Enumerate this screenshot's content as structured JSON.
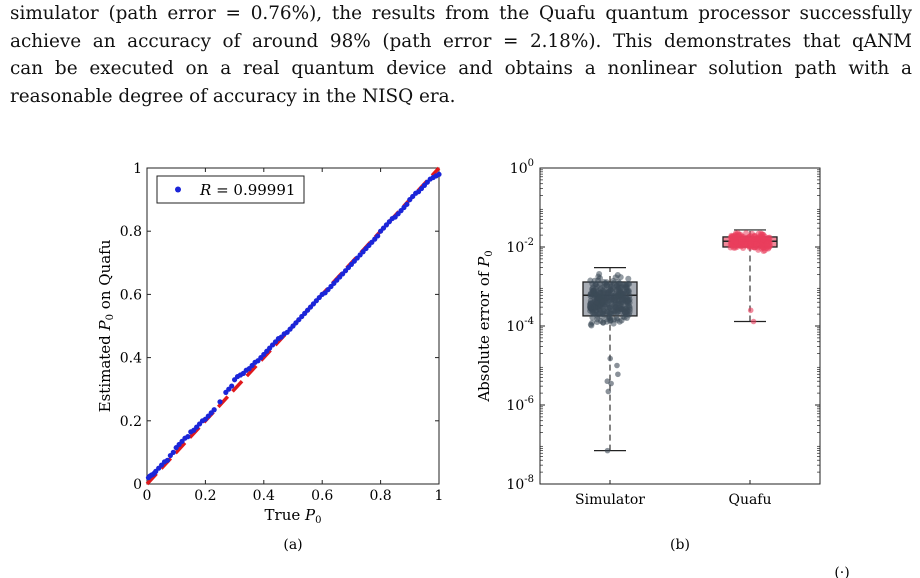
{
  "paragraph": {
    "lines": [
      "simulator (path error = 0.76%), the results from the Quafu quantum processor successfully",
      "achieve an accuracy of around 98% (path error = 2.18%). This demonstrates that qANM",
      "can be executed on a real quantum device and obtains a nonlinear solution path with a",
      "reasonable degree of accuracy in the NISQ era."
    ]
  },
  "figure": {
    "caption_fragment": "(·)"
  },
  "chart_data": [
    {
      "type": "scatter",
      "panel_label": "(a)",
      "xlabel_text": "True ",
      "xlabel_sym": "P",
      "xlabel_sub": "0",
      "ylabel_text": "Estimated ",
      "ylabel_sym": "P",
      "ylabel_sub": "0",
      "ylabel_tail": " on Quafu",
      "xlim": [
        0,
        1
      ],
      "ylim": [
        0,
        1
      ],
      "xticks": [
        "0",
        "0.2",
        "0.4",
        "0.6",
        "0.8",
        "1"
      ],
      "yticks": [
        "0",
        "0.2",
        "0.4",
        "0.6",
        "0.8",
        "1"
      ],
      "legend": {
        "sym": "R",
        "value": " = 0.99991",
        "placement": "top-left"
      },
      "series": [
        {
          "role": "points",
          "color": "#1b25d8",
          "x": [
            0.005,
            0.01,
            0.015,
            0.02,
            0.025,
            0.03,
            0.04,
            0.05,
            0.06,
            0.07,
            0.08,
            0.09,
            0.1,
            0.11,
            0.12,
            0.13,
            0.14,
            0.15,
            0.16,
            0.17,
            0.18,
            0.19,
            0.2,
            0.21,
            0.22,
            0.23,
            0.25,
            0.27,
            0.28,
            0.29,
            0.3,
            0.31,
            0.32,
            0.33,
            0.34,
            0.35,
            0.36,
            0.37,
            0.38,
            0.39,
            0.4,
            0.41,
            0.42,
            0.43,
            0.44,
            0.45,
            0.46,
            0.47,
            0.48,
            0.49,
            0.5,
            0.51,
            0.52,
            0.53,
            0.54,
            0.55,
            0.56,
            0.57,
            0.58,
            0.59,
            0.6,
            0.61,
            0.62,
            0.63,
            0.64,
            0.65,
            0.66,
            0.67,
            0.68,
            0.69,
            0.7,
            0.71,
            0.72,
            0.73,
            0.74,
            0.75,
            0.76,
            0.77,
            0.78,
            0.79,
            0.8,
            0.81,
            0.82,
            0.83,
            0.84,
            0.85,
            0.86,
            0.87,
            0.88,
            0.89,
            0.9,
            0.91,
            0.92,
            0.93,
            0.94,
            0.95,
            0.96,
            0.97,
            0.98,
            0.99,
            1.0
          ],
          "y": [
            0.02,
            0.025,
            0.028,
            0.03,
            0.034,
            0.04,
            0.05,
            0.06,
            0.07,
            0.075,
            0.09,
            0.1,
            0.115,
            0.125,
            0.135,
            0.145,
            0.15,
            0.165,
            0.17,
            0.18,
            0.19,
            0.2,
            0.205,
            0.215,
            0.225,
            0.235,
            0.26,
            0.29,
            0.3,
            0.31,
            0.33,
            0.34,
            0.345,
            0.35,
            0.36,
            0.365,
            0.375,
            0.385,
            0.39,
            0.4,
            0.41,
            0.42,
            0.43,
            0.44,
            0.45,
            0.46,
            0.465,
            0.475,
            0.48,
            0.49,
            0.5,
            0.51,
            0.52,
            0.53,
            0.54,
            0.55,
            0.56,
            0.57,
            0.58,
            0.59,
            0.6,
            0.605,
            0.615,
            0.625,
            0.635,
            0.645,
            0.655,
            0.665,
            0.675,
            0.685,
            0.695,
            0.705,
            0.715,
            0.725,
            0.735,
            0.745,
            0.755,
            0.765,
            0.775,
            0.785,
            0.8,
            0.81,
            0.82,
            0.83,
            0.84,
            0.845,
            0.855,
            0.865,
            0.875,
            0.885,
            0.9,
            0.91,
            0.92,
            0.925,
            0.935,
            0.945,
            0.955,
            0.965,
            0.97,
            0.975,
            0.98
          ]
        },
        {
          "role": "reference-line",
          "color": "#e0191c",
          "x": [
            0,
            1
          ],
          "y": [
            0,
            1
          ]
        }
      ]
    },
    {
      "type": "box",
      "panel_label": "(b)",
      "ylabel_text": "Absolute error of ",
      "ylabel_sym": "P",
      "ylabel_sub": "0",
      "yscale": "log",
      "ylim": [
        1e-08,
        1
      ],
      "yticks": [
        {
          "base": "10",
          "exp": "0"
        },
        {
          "base": "10",
          "exp": "-2"
        },
        {
          "base": "10",
          "exp": "-4"
        },
        {
          "base": "10",
          "exp": "-6"
        },
        {
          "base": "10",
          "exp": "-8"
        }
      ],
      "categories": [
        "Simulator",
        "Quafu"
      ],
      "boxes": [
        {
          "name": "Simulator",
          "color": "#a8adb5",
          "point_color": "#3d4a57",
          "whisker_low": 7e-08,
          "q1": 0.00018,
          "median": 0.0006,
          "q3": 0.0013,
          "whisker_high": 0.003,
          "outliers": [
            7e-08,
            2.2e-06,
            3.5e-06,
            4e-06,
            6e-06,
            1e-05,
            1.5e-05
          ]
        },
        {
          "name": "Quafu",
          "color": "#ef8a9a",
          "point_color": "#ea3e5d",
          "whisker_low": 0.00013,
          "q1": 0.01,
          "median": 0.014,
          "q3": 0.018,
          "whisker_high": 0.027,
          "outliers": [
            0.00013,
            0.00025
          ]
        }
      ]
    }
  ]
}
